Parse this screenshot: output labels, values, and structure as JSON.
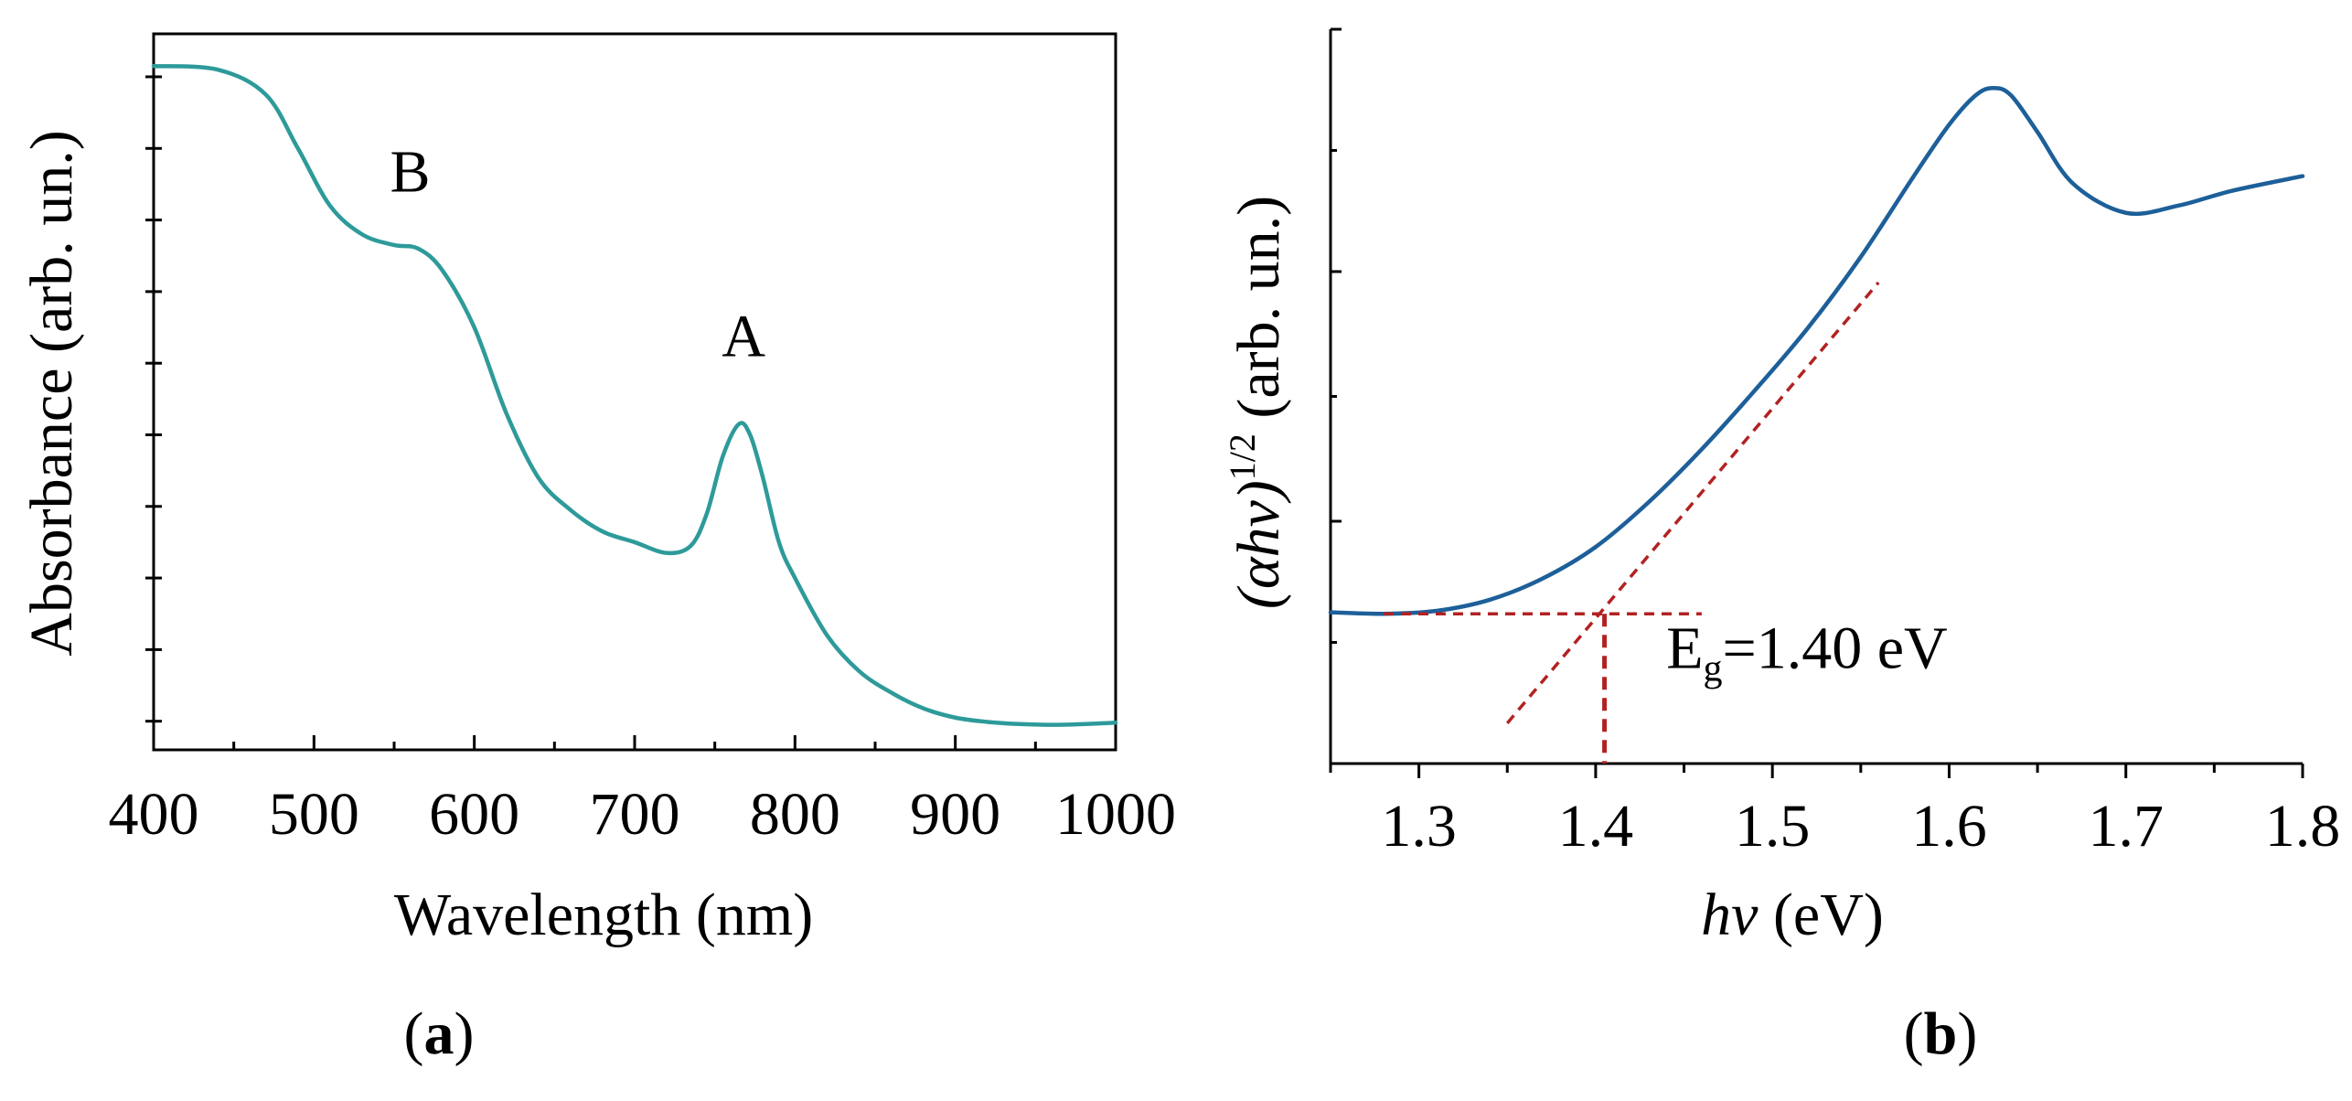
{
  "chart_data": [
    {
      "id": "a",
      "type": "line",
      "panel_label": "a",
      "xlabel": "Wavelength (nm)",
      "ylabel": "Absorbance (arb. un.)",
      "xlim": [
        400,
        1000
      ],
      "ylim": [
        0,
        1
      ],
      "grid": false,
      "x_ticks": [
        400,
        500,
        600,
        700,
        800,
        900,
        1000
      ],
      "x_tick_labels": [
        "400",
        "500",
        "600",
        "700",
        "800",
        "900",
        "1000"
      ],
      "y_ticks": [
        0.04,
        0.14,
        0.24,
        0.34,
        0.44,
        0.54,
        0.64,
        0.74,
        0.84,
        0.94
      ],
      "y_tick_labels": [],
      "series": [
        {
          "name": "Absorbance",
          "color": "#2E9A9A",
          "x": [
            400,
            440,
            470,
            490,
            510,
            530,
            550,
            565,
            580,
            600,
            620,
            640,
            660,
            680,
            700,
            720,
            735,
            745,
            755,
            765,
            772,
            780,
            790,
            800,
            820,
            840,
            860,
            880,
            900,
            920,
            940,
            960,
            980,
            1000
          ],
          "y": [
            0.955,
            0.95,
            0.915,
            0.84,
            0.76,
            0.72,
            0.705,
            0.7,
            0.67,
            0.59,
            0.47,
            0.38,
            0.335,
            0.305,
            0.29,
            0.275,
            0.285,
            0.33,
            0.41,
            0.455,
            0.44,
            0.38,
            0.29,
            0.24,
            0.16,
            0.11,
            0.08,
            0.058,
            0.045,
            0.039,
            0.036,
            0.035,
            0.036,
            0.038
          ]
        }
      ],
      "annotations": [
        {
          "text": "B",
          "x": 560,
          "y": 0.78
        },
        {
          "text": "A",
          "x": 768,
          "y": 0.55
        }
      ]
    },
    {
      "id": "b",
      "type": "line",
      "panel_label": "b",
      "xlabel_parts": {
        "italic": "hν",
        "rest": " (eV)"
      },
      "ylabel_parts": {
        "italic": "(αhν)",
        "sup": "1/2",
        "rest": " (arb. un.)"
      },
      "xlim": [
        1.25,
        1.8
      ],
      "ylim": [
        0,
        1
      ],
      "grid": false,
      "x_ticks": [
        1.3,
        1.4,
        1.5,
        1.6,
        1.7,
        1.8
      ],
      "x_tick_labels": [
        "1.3",
        "1.4",
        "1.5",
        "1.6",
        "1.7",
        "1.8"
      ],
      "y_ticks": [
        0.33,
        0.67,
        1.0
      ],
      "y_tick_labels": [],
      "series": [
        {
          "name": "(αhν)^1/2",
          "color": "#1D5F99",
          "x": [
            1.25,
            1.28,
            1.31,
            1.34,
            1.37,
            1.4,
            1.43,
            1.46,
            1.49,
            1.52,
            1.55,
            1.58,
            1.6,
            1.615,
            1.625,
            1.635,
            1.65,
            1.67,
            1.7,
            1.73,
            1.76,
            1.8
          ],
          "y": [
            0.206,
            0.204,
            0.208,
            0.223,
            0.252,
            0.295,
            0.356,
            0.428,
            0.508,
            0.593,
            0.69,
            0.8,
            0.87,
            0.91,
            0.92,
            0.91,
            0.86,
            0.79,
            0.75,
            0.76,
            0.78,
            0.8
          ]
        }
      ],
      "fit_lines": [
        {
          "name": "linear fit",
          "color": "#B22222",
          "x": [
            1.35,
            1.56
          ],
          "y": [
            0.055,
            0.655
          ]
        },
        {
          "name": "baseline",
          "color": "#B22222",
          "x": [
            1.28,
            1.46
          ],
          "y": [
            0.204,
            0.204
          ]
        },
        {
          "name": "Eg marker",
          "color": "#B22222",
          "x": [
            1.405,
            1.405
          ],
          "y": [
            0.204,
            0.0
          ]
        }
      ],
      "annotation": {
        "text_main": "E",
        "text_sub": "g",
        "text_rest": "=1.40 eV",
        "x": 1.44,
        "y": 0.13
      }
    }
  ]
}
